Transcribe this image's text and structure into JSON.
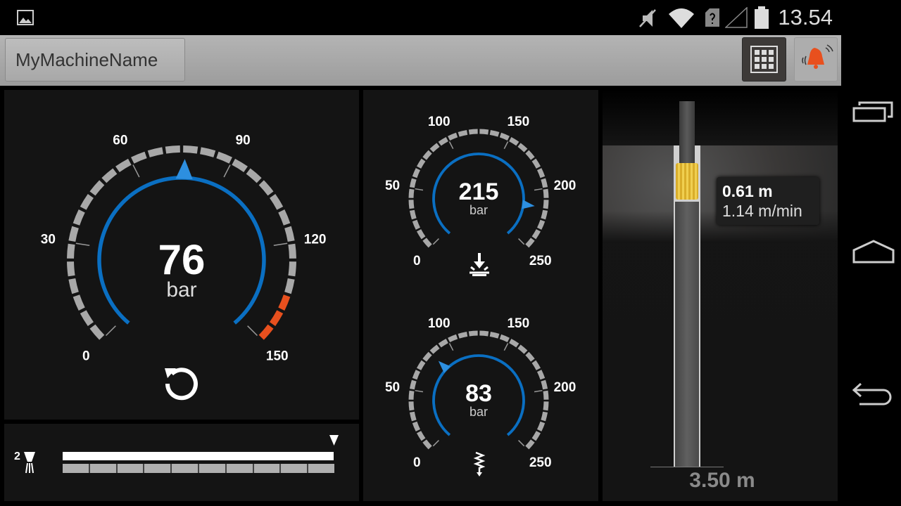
{
  "status_bar": {
    "time": "13.54",
    "icons": [
      "image-icon",
      "mute-icon",
      "wifi-icon",
      "sim-unknown-icon",
      "signal-icon",
      "battery-icon"
    ]
  },
  "app_bar": {
    "machine_name": "MyMachineName",
    "grid_button": "grid-icon",
    "alarm_button": "alarm-bell-icon"
  },
  "main_gauge": {
    "value": "76",
    "unit": "bar",
    "numeric_value": 76,
    "min": 0,
    "max": 150,
    "tick_labels": [
      "0",
      "30",
      "60",
      "90",
      "120",
      "150"
    ],
    "warning_range": [
      135,
      150
    ],
    "arc_color": "#0a6fc2",
    "warning_color": "#e8501e",
    "reset_icon": "reset-icon"
  },
  "gauge_feed": {
    "value": "215",
    "unit": "bar",
    "numeric_value": 215,
    "max": 250,
    "tick_labels": [
      "0",
      "50",
      "100",
      "150",
      "200",
      "250"
    ],
    "icon": "feed-down-icon"
  },
  "gauge_percussion": {
    "value": "83",
    "unit": "bar",
    "numeric_value": 83,
    "max": 250,
    "tick_labels": [
      "0",
      "50",
      "100",
      "150",
      "200",
      "250"
    ],
    "icon": "percussion-icon"
  },
  "rod_panel": {
    "count": "2",
    "icon": "rod-bit-icon",
    "segments": 10,
    "fill_fraction": 1.0
  },
  "drill_view": {
    "bit_depth": "0.61 m",
    "penetration_rate": "1.14 m/min",
    "total_depth": "3.50 m",
    "bit_color": "#e6c23c"
  },
  "nav_bar": {
    "recent": "recent-apps-icon",
    "home": "home-icon",
    "back": "back-icon"
  }
}
